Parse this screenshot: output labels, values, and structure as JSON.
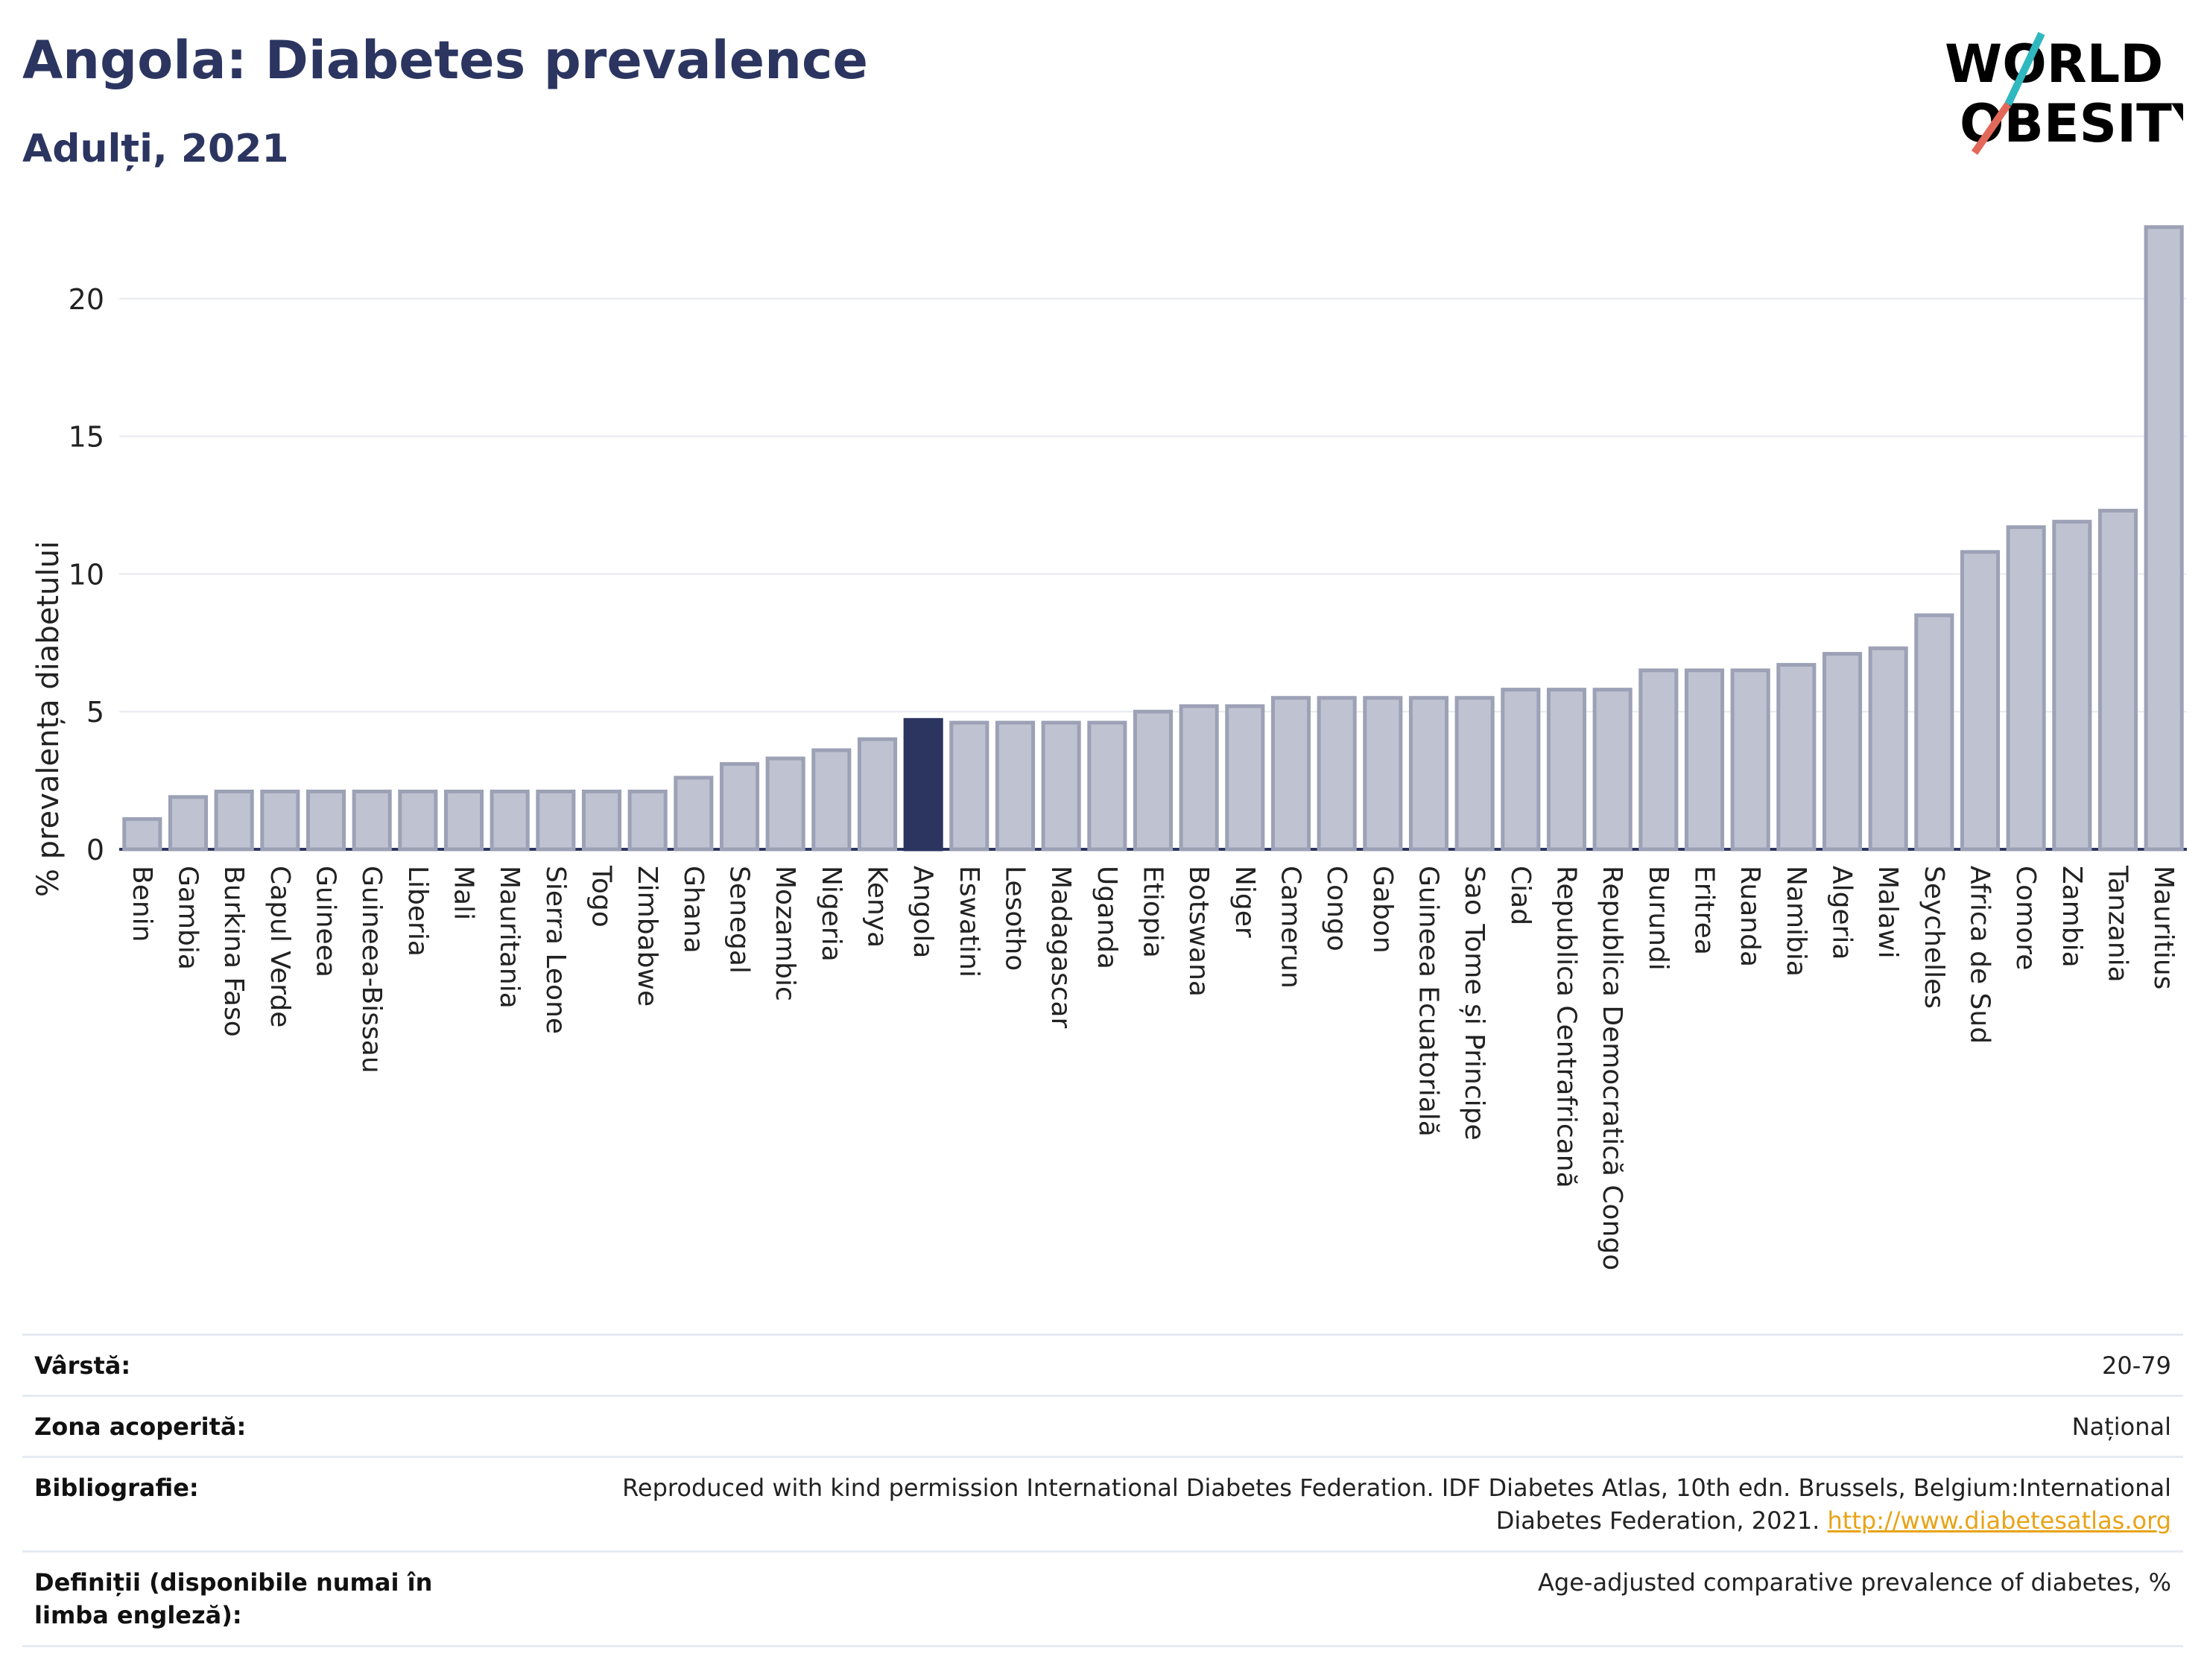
{
  "header": {
    "title": "Angola: Diabetes prevalence",
    "subtitle": "Adulți, 2021"
  },
  "logo": {
    "line1": "WORLD",
    "line2": "OBESITY"
  },
  "colors": {
    "highlight": "#2b3560",
    "bar": "#bfc3d1",
    "bar_stroke": "#9ca1b6",
    "grid": "#e6e9ef",
    "title": "#2b3560",
    "link": "#e8a317"
  },
  "chart_data": {
    "type": "bar",
    "ylabel": "% prevalența diabetului",
    "ylim": [
      0,
      23
    ],
    "yticks": [
      0,
      5,
      10,
      15,
      20
    ],
    "highlight": "Angola",
    "categories": [
      "Benin",
      "Gambia",
      "Burkina Faso",
      "Capul Verde",
      "Guineea",
      "Guineea-Bissau",
      "Liberia",
      "Mali",
      "Mauritania",
      "Sierra Leone",
      "Togo",
      "Zimbabwe",
      "Ghana",
      "Senegal",
      "Mozambic",
      "Nigeria",
      "Kenya",
      "Angola",
      "Eswatini",
      "Lesotho",
      "Madagascar",
      "Uganda",
      "Etiopia",
      "Botswana",
      "Niger",
      "Camerun",
      "Congo",
      "Gabon",
      "Guineea Ecuatorială",
      "Sao Tome și Principe",
      "Ciad",
      "Republica Centrafricană",
      "Republica Democratică Congo",
      "Burundi",
      "Eritrea",
      "Ruanda",
      "Namibia",
      "Algeria",
      "Malawi",
      "Seychelles",
      "Africa de Sud",
      "Comore",
      "Zambia",
      "Tanzania",
      "Mauritius"
    ],
    "values": [
      1.1,
      1.9,
      2.1,
      2.1,
      2.1,
      2.1,
      2.1,
      2.1,
      2.1,
      2.1,
      2.1,
      2.1,
      2.6,
      3.1,
      3.3,
      3.6,
      4.0,
      4.7,
      4.6,
      4.6,
      4.6,
      4.6,
      5.0,
      5.2,
      5.2,
      5.5,
      5.5,
      5.5,
      5.5,
      5.5,
      5.8,
      5.8,
      5.8,
      6.5,
      6.5,
      6.5,
      6.7,
      7.1,
      7.3,
      8.5,
      10.8,
      11.7,
      11.9,
      12.3,
      22.6
    ]
  },
  "meta": [
    {
      "label": "Vârstă:",
      "value": "20-79"
    },
    {
      "label": "Zona acoperită:",
      "value": "Național"
    },
    {
      "label": "Bibliografie:",
      "value_line1": "Reproduced with kind permission International Diabetes Federation.  IDF Diabetes Atlas, 10th edn. Brussels, Belgium:International",
      "value_line2": "Diabetes Federation, 2021.",
      "link": "http://www.diabetesatlas.org"
    },
    {
      "label": "Definiții (disponibile numai în limba engleză):",
      "value": "Age-adjusted comparative prevalence of diabetes, %"
    }
  ]
}
